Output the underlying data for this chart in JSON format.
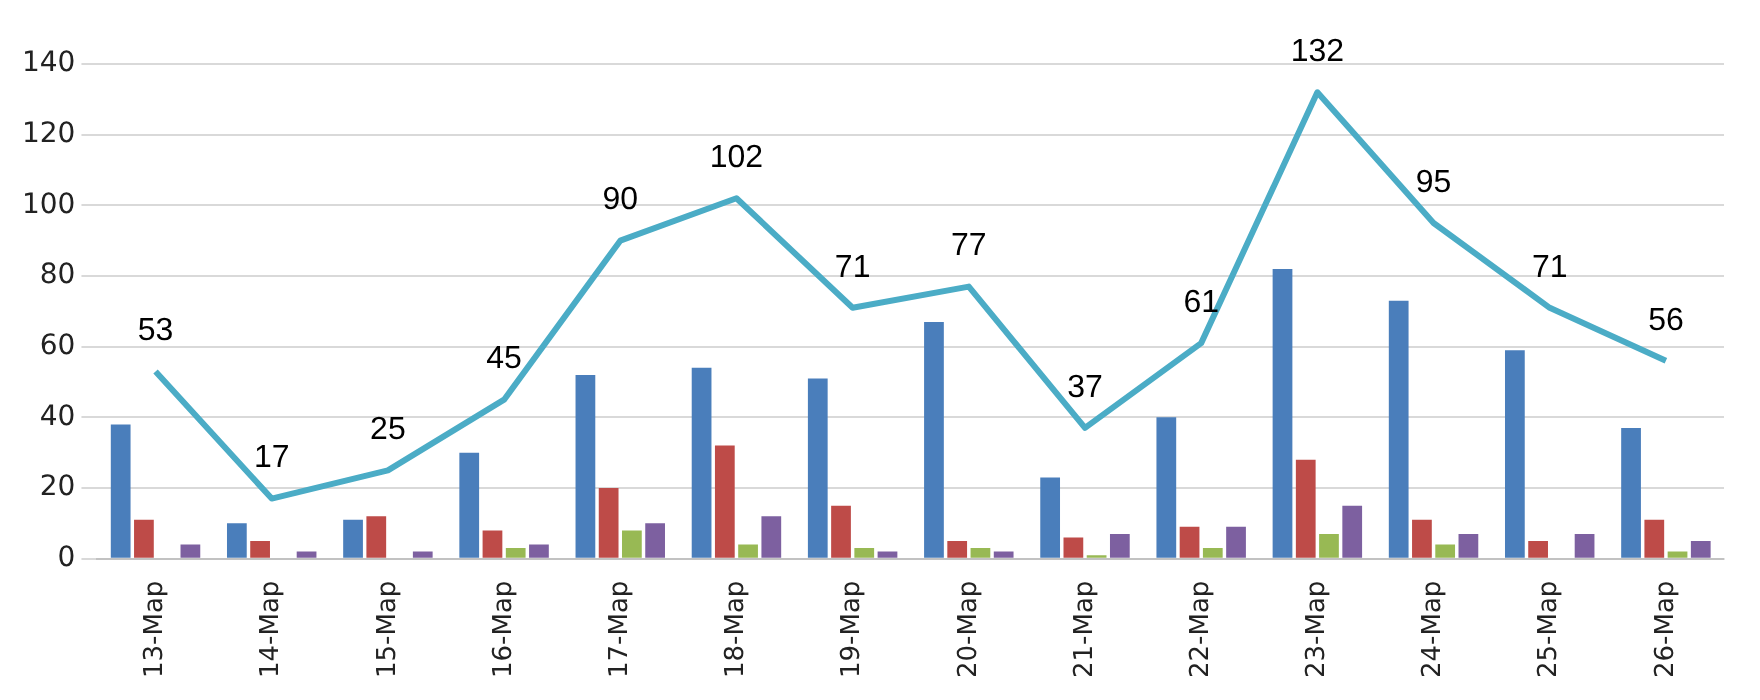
{
  "chart_data": {
    "type": "bar",
    "categories": [
      "13-Мар",
      "14-Мар",
      "15-Мар",
      "16-Мар",
      "17-Мар",
      "18-Мар",
      "19-Мар",
      "20-Мар",
      "21-Мар",
      "22-Мар",
      "23-Мар",
      "24-Мар",
      "25-Мар",
      "26-Мар"
    ],
    "series": [
      {
        "color": "#4a7ebb",
        "values": [
          38,
          10,
          11,
          30,
          52,
          54,
          51,
          67,
          23,
          40,
          82,
          73,
          59,
          37
        ]
      },
      {
        "color": "#be4b48",
        "values": [
          11,
          5,
          12,
          8,
          20,
          32,
          15,
          5,
          6,
          9,
          28,
          11,
          5,
          11
        ]
      },
      {
        "color": "#98b954",
        "values": [
          null,
          null,
          null,
          3,
          8,
          4,
          3,
          3,
          1,
          3,
          7,
          4,
          null,
          2
        ]
      },
      {
        "color": "#7d60a0",
        "values": [
          4,
          2,
          2,
          4,
          10,
          12,
          2,
          2,
          7,
          9,
          15,
          7,
          7,
          5
        ]
      },
      {
        "type": "line",
        "color": "#4bacc6",
        "values": [
          53,
          17,
          25,
          45,
          90,
          102,
          71,
          77,
          37,
          61,
          132,
          95,
          71,
          56
        ],
        "value_labels": [
          "53",
          "17",
          "25",
          "45",
          "90",
          "102",
          "71",
          "77",
          "37",
          "61",
          "132",
          "95",
          "71",
          "56"
        ]
      }
    ],
    "ylim": [
      0,
      140
    ],
    "yticks": [
      0,
      20,
      40,
      60,
      80,
      100,
      120,
      140
    ],
    "grid": "y",
    "legend": false,
    "marker": "none"
  }
}
